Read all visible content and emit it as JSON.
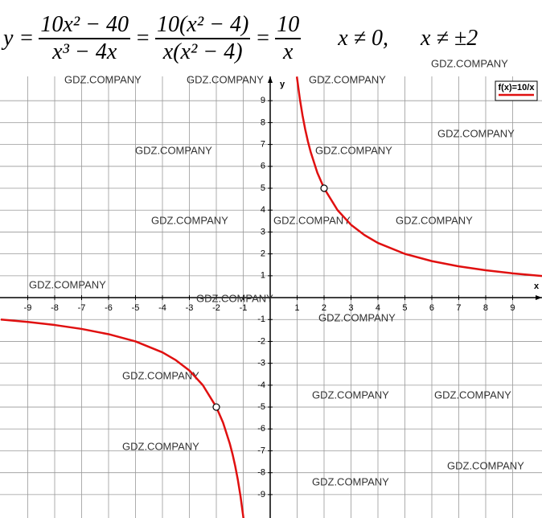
{
  "formula": {
    "lhs": "y =",
    "f1_num": "10x² − 40",
    "f1_den": "x³ − 4x",
    "eq1": "=",
    "f2_num": "10(x² − 4)",
    "f2_den": "x(x² − 4)",
    "eq2": "=",
    "f3_num": "10",
    "f3_den": "x",
    "cond1": "x ≠ 0,",
    "cond2": "x ≠ ±2"
  },
  "watermark": "GDZ.COMPANY",
  "chart_data": {
    "type": "line",
    "x_label": "x",
    "y_label": "y",
    "xlim": [
      -10.03,
      10.09
    ],
    "ylim": [
      -10.07,
      10.11
    ],
    "xticks": [
      -9,
      -8,
      -7,
      -6,
      -5,
      -4,
      -3,
      -2,
      -1,
      1,
      2,
      3,
      4,
      5,
      6,
      7,
      8,
      9
    ],
    "yticks": [
      -9,
      -8,
      -7,
      -6,
      -5,
      -4,
      -3,
      -2,
      -1,
      1,
      2,
      3,
      4,
      5,
      6,
      7,
      8,
      9
    ],
    "grid": true,
    "legend": "top-right",
    "x": [
      -10,
      -9,
      -8,
      -7,
      -6,
      -5,
      -4,
      -3.5,
      -3,
      -2.5,
      -2,
      -1.75,
      -1.5,
      -1.4,
      -1.3,
      -1.2,
      -1.1,
      -0.99,
      0,
      0.99,
      1.1,
      1.2,
      1.3,
      1.4,
      1.5,
      1.75,
      2,
      2.5,
      3,
      3.5,
      4,
      5,
      6,
      7,
      8,
      9,
      10.09
    ],
    "series": [
      {
        "name": "f(x)=10/x",
        "color": "#e01010",
        "values": [
          -1,
          -1.11,
          -1.25,
          -1.43,
          -1.67,
          -2,
          -2.5,
          -2.86,
          -3.33,
          -4,
          -5,
          -5.71,
          -6.67,
          -7.14,
          -7.69,
          -8.33,
          -9.09,
          -10.1,
          null,
          10.1,
          9.09,
          8.33,
          7.69,
          7.14,
          6.67,
          5.71,
          5,
          4,
          3.33,
          2.86,
          2.5,
          2,
          1.67,
          1.43,
          1.25,
          1.11,
          0.99
        ]
      }
    ],
    "holes": {
      "x": [
        2,
        -2
      ],
      "y": [
        5,
        -5
      ]
    }
  }
}
